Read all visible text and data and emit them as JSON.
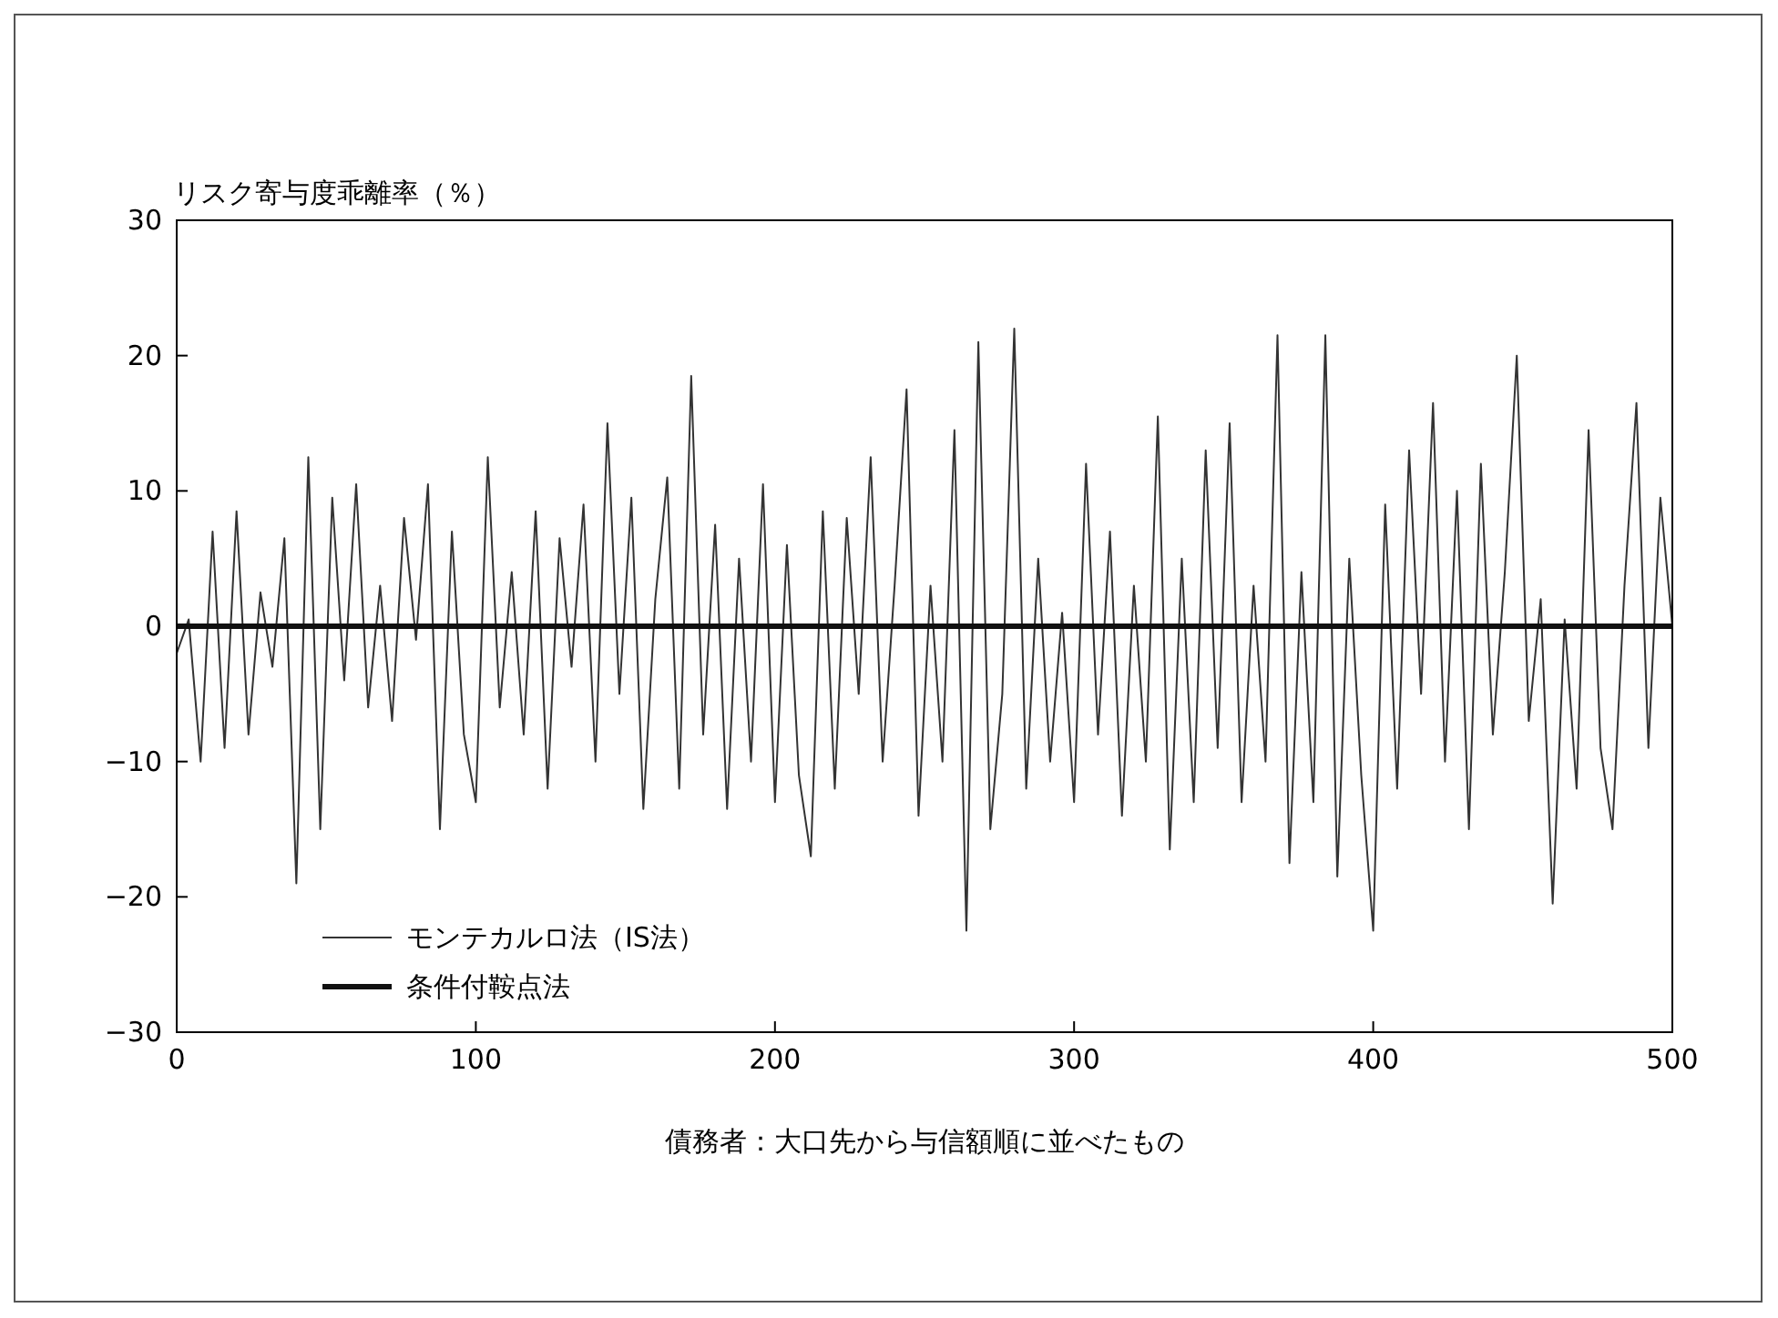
{
  "chart_data": {
    "type": "line",
    "ylabel": "リスク寄与度乖離率（％）",
    "xlabel": "債務者：大口先から与信額順に並べたもの",
    "xlim": [
      0,
      500
    ],
    "xticks": [
      0,
      100,
      200,
      300,
      400,
      500
    ],
    "ylim": [
      -30,
      30
    ],
    "yticks": [
      {
        "value": -30,
        "label": "−30"
      },
      {
        "value": -20,
        "label": "−20"
      },
      {
        "value": -10,
        "label": "−10"
      },
      0,
      10,
      20,
      30
    ],
    "legend": "bottom left",
    "grid": false,
    "series": [
      {
        "name": "モンテカルロ法（IS法）",
        "color": "#333333",
        "x": [
          0,
          4,
          8,
          12,
          16,
          20,
          24,
          28,
          32,
          36,
          40,
          44,
          48,
          52,
          56,
          60,
          64,
          68,
          72,
          76,
          80,
          84,
          88,
          92,
          96,
          100,
          104,
          108,
          112,
          116,
          120,
          124,
          128,
          132,
          136,
          140,
          144,
          148,
          152,
          156,
          160,
          164,
          168,
          172,
          176,
          180,
          184,
          188,
          192,
          196,
          200,
          204,
          208,
          212,
          216,
          220,
          224,
          228,
          232,
          236,
          240,
          244,
          248,
          252,
          256,
          260,
          264,
          268,
          272,
          276,
          280,
          284,
          288,
          292,
          296,
          300,
          304,
          308,
          312,
          316,
          320,
          324,
          328,
          332,
          336,
          340,
          344,
          348,
          352,
          356,
          360,
          364,
          368,
          372,
          376,
          380,
          384,
          388,
          392,
          396,
          400,
          404,
          408,
          412,
          416,
          420,
          424,
          428,
          432,
          436,
          440,
          444,
          448,
          452,
          456,
          460,
          464,
          468,
          472,
          476,
          480,
          484,
          488,
          492,
          496,
          500
        ],
        "values": [
          -2,
          0.5,
          -10,
          7,
          -9,
          8.5,
          -8,
          2.5,
          -3,
          6.5,
          -19,
          12.5,
          -15,
          9.5,
          -4,
          10.5,
          -6,
          3,
          -7,
          8,
          -1,
          10.5,
          -15,
          7,
          -8,
          -13,
          12.5,
          -6,
          4,
          -8,
          8.5,
          -12,
          6.5,
          -3,
          9,
          -10,
          15,
          -5,
          9.5,
          -13.5,
          2,
          11,
          -12,
          18.5,
          -8,
          7.5,
          -13.5,
          5,
          -10,
          10.5,
          -13,
          6,
          -11,
          -17,
          8.5,
          -12,
          8,
          -5,
          12.5,
          -10,
          3,
          17.5,
          -14,
          3,
          -10,
          14.5,
          -22.5,
          21,
          -15,
          -5,
          22,
          -12,
          5,
          -10,
          1,
          -13,
          12,
          -8,
          7,
          -14,
          3,
          -10,
          15.5,
          -16.5,
          5,
          -13,
          13,
          -9,
          15,
          -13,
          3,
          -10,
          21.5,
          -17.5,
          4,
          -13,
          21.5,
          -18.5,
          5,
          -11,
          -22.5,
          9,
          -12,
          13,
          -5,
          16.5,
          -10,
          10,
          -15,
          12,
          -8,
          4,
          20,
          -7,
          2,
          -20.5,
          0.5,
          -12,
          14.5,
          -9,
          -15,
          3,
          16.5,
          -9,
          9.5,
          0
        ]
      },
      {
        "name": "条件付鞍点法",
        "color": "#111111",
        "x": [
          0,
          500
        ],
        "values": [
          0,
          0
        ]
      }
    ]
  }
}
